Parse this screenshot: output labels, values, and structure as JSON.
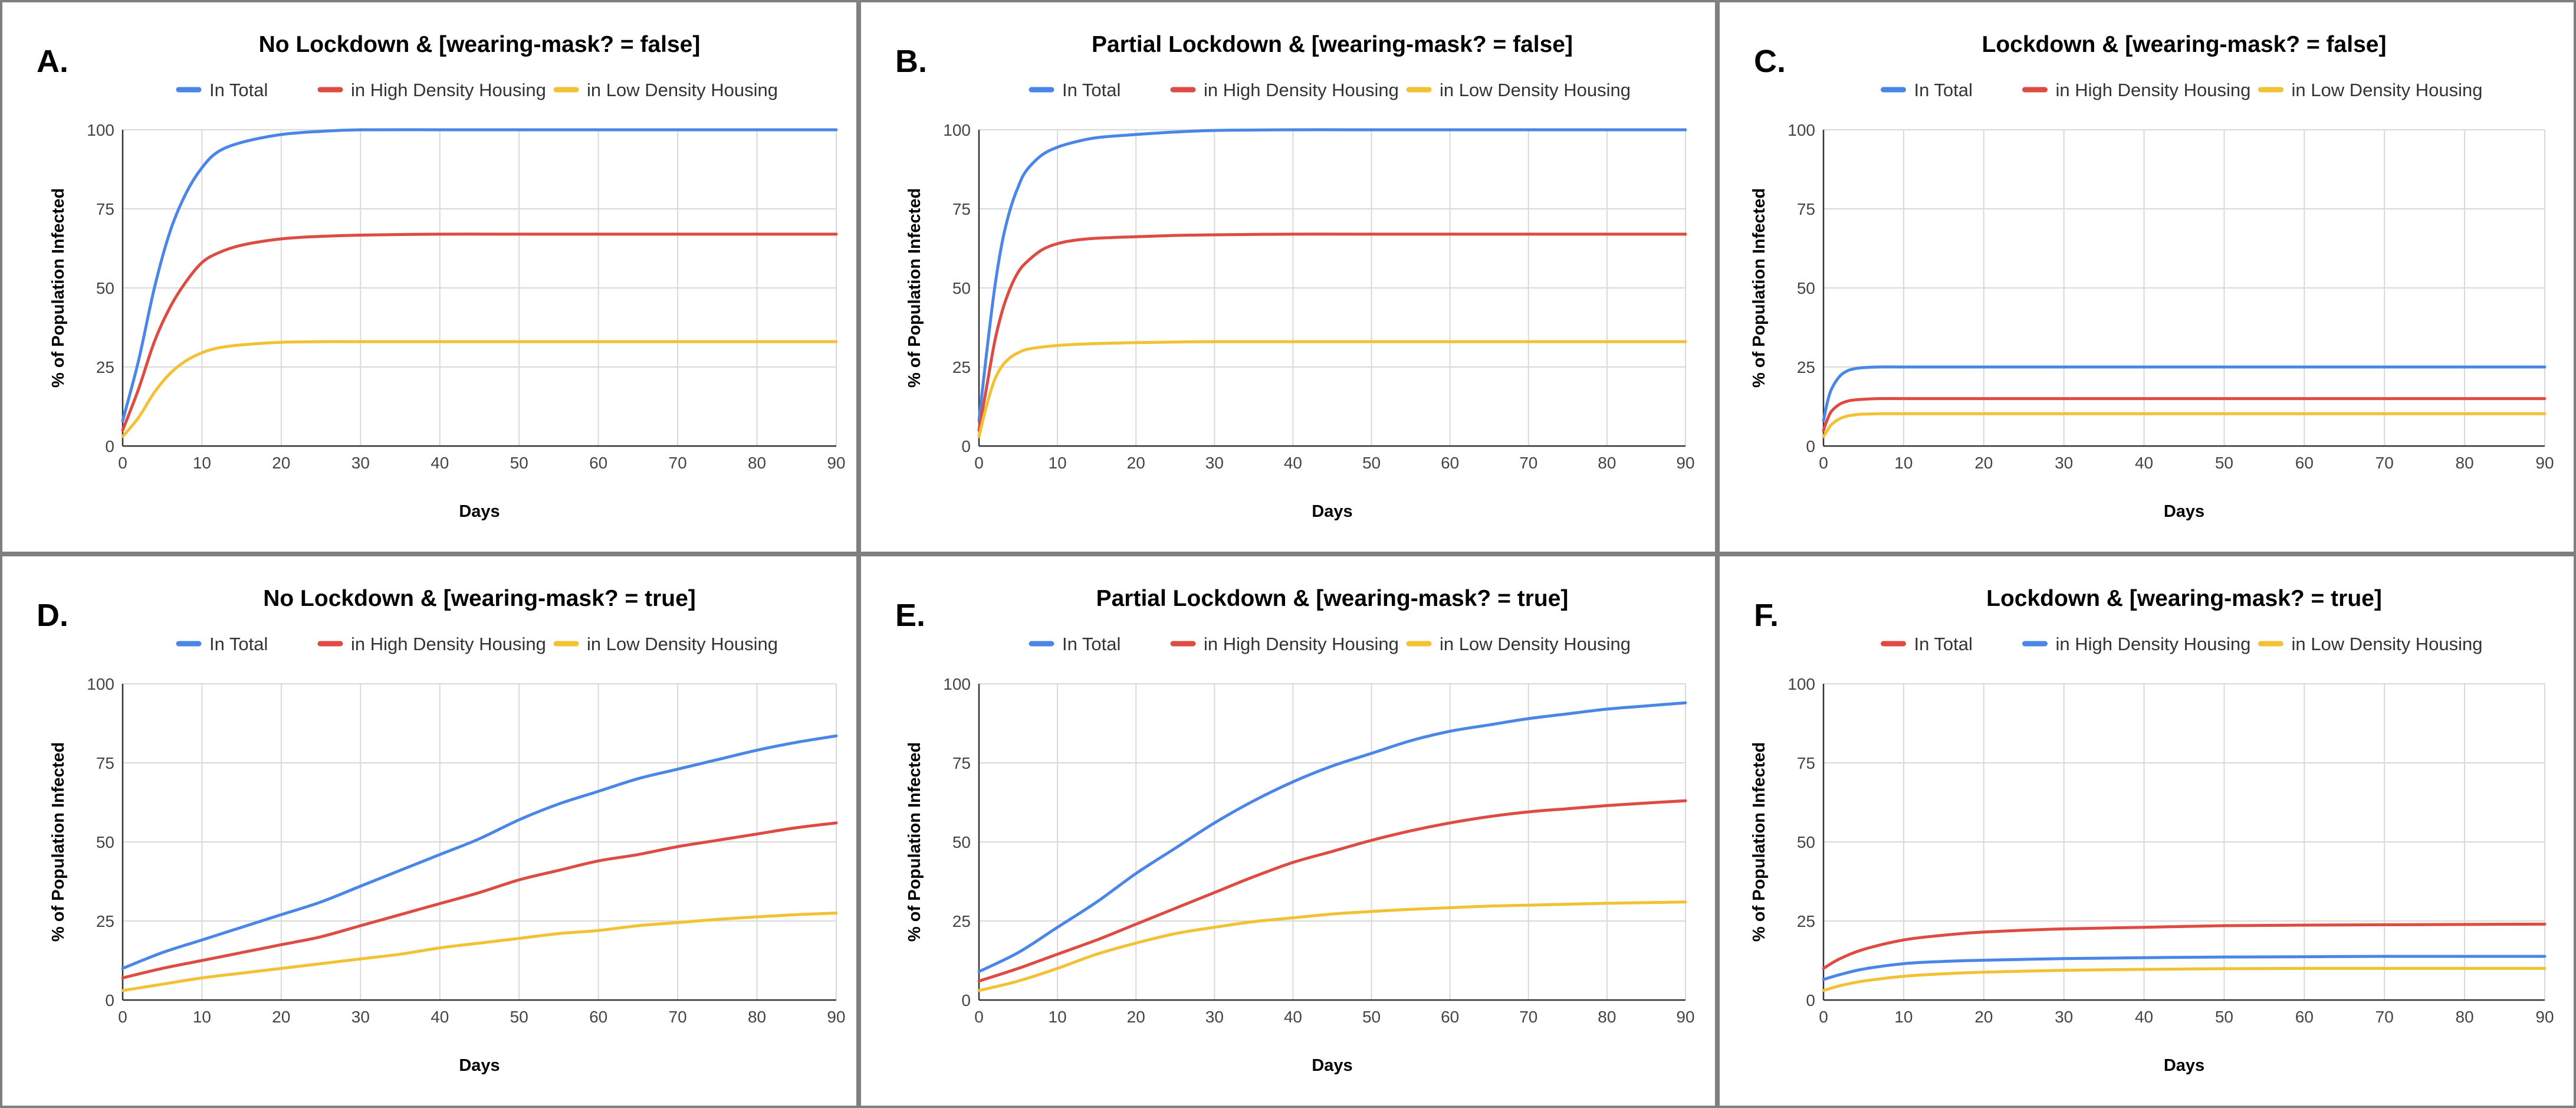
{
  "colors": {
    "blue": "#4a86e8",
    "red": "#dd4b42",
    "yellow": "#f3c134"
  },
  "chart_data": [
    {
      "panel": "A.",
      "type": "line",
      "title": "No Lockdown & [wearing-mask? = false]",
      "xlabel": "Days",
      "ylabel": "% of Population Infected",
      "xlim": [
        0,
        90
      ],
      "ylim": [
        0,
        100
      ],
      "xticks": [
        0,
        10,
        20,
        30,
        40,
        50,
        60,
        70,
        80,
        90
      ],
      "yticks": [
        0,
        25,
        50,
        75,
        100
      ],
      "legend": "top",
      "series": [
        {
          "name": "In Total",
          "color": "blue",
          "x": [
            0,
            2,
            4,
            6,
            8,
            10,
            12,
            15,
            20,
            25,
            30,
            40,
            50,
            60,
            70,
            80,
            90
          ],
          "y": [
            8,
            27,
            50,
            68,
            80,
            88,
            93,
            96,
            98.5,
            99.5,
            100,
            100,
            100,
            100,
            100,
            100,
            100
          ]
        },
        {
          "name": "in High Density Housing",
          "color": "red",
          "x": [
            0,
            2,
            4,
            6,
            8,
            10,
            12,
            15,
            20,
            25,
            30,
            40,
            50,
            60,
            70,
            80,
            90
          ],
          "y": [
            5,
            18,
            33,
            44,
            52,
            58,
            61,
            63.5,
            65.5,
            66.3,
            66.7,
            67,
            67,
            67,
            67,
            67,
            67
          ]
        },
        {
          "name": "in Low Density Housing",
          "color": "yellow",
          "x": [
            0,
            2,
            4,
            6,
            8,
            10,
            12,
            15,
            20,
            25,
            30,
            40,
            50,
            60,
            70,
            80,
            90
          ],
          "y": [
            3,
            9,
            17,
            23,
            27,
            29.5,
            31,
            32,
            32.8,
            33,
            33,
            33,
            33,
            33,
            33,
            33,
            33
          ]
        }
      ]
    },
    {
      "panel": "B.",
      "type": "line",
      "title": "Partial Lockdown & [wearing-mask? = false]",
      "xlabel": "Days",
      "ylabel": "% of Population Infected",
      "xlim": [
        0,
        90
      ],
      "ylim": [
        0,
        100
      ],
      "xticks": [
        0,
        10,
        20,
        30,
        40,
        50,
        60,
        70,
        80,
        90
      ],
      "yticks": [
        0,
        25,
        50,
        75,
        100
      ],
      "legend": "top",
      "series": [
        {
          "name": "In Total",
          "color": "blue",
          "x": [
            0,
            1,
            2,
            3,
            4,
            5,
            6,
            8,
            10,
            12,
            15,
            20,
            25,
            30,
            40,
            50,
            60,
            70,
            80,
            90
          ],
          "y": [
            8,
            30,
            50,
            65,
            75,
            82,
            87,
            92,
            94.5,
            96,
            97.5,
            98.5,
            99.3,
            99.8,
            100,
            100,
            100,
            100,
            100,
            100
          ]
        },
        {
          "name": "in High Density Housing",
          "color": "red",
          "x": [
            0,
            1,
            2,
            3,
            4,
            5,
            6,
            8,
            10,
            12,
            15,
            20,
            25,
            30,
            40,
            50,
            60,
            70,
            80,
            90
          ],
          "y": [
            5,
            19,
            33,
            43,
            50,
            55,
            58,
            62,
            64,
            65,
            65.7,
            66.2,
            66.6,
            66.8,
            67,
            67,
            67,
            67,
            67,
            67
          ]
        },
        {
          "name": "in Low Density Housing",
          "color": "yellow",
          "x": [
            0,
            1,
            2,
            3,
            4,
            5,
            6,
            8,
            10,
            12,
            15,
            20,
            25,
            30,
            40,
            50,
            60,
            70,
            80,
            90
          ],
          "y": [
            3,
            13,
            21,
            25.5,
            28,
            29.5,
            30.5,
            31.3,
            31.8,
            32.1,
            32.4,
            32.7,
            32.9,
            33,
            33,
            33,
            33,
            33,
            33,
            33
          ]
        }
      ]
    },
    {
      "panel": "C.",
      "type": "line",
      "title": "Lockdown & [wearing-mask? = false]",
      "xlabel": "Days",
      "ylabel": "% of Population Infected",
      "xlim": [
        0,
        90
      ],
      "ylim": [
        0,
        100
      ],
      "xticks": [
        0,
        10,
        20,
        30,
        40,
        50,
        60,
        70,
        80,
        90
      ],
      "yticks": [
        0,
        25,
        50,
        75,
        100
      ],
      "legend": "top",
      "series": [
        {
          "name": "In Total",
          "color": "blue",
          "x": [
            0,
            0.5,
            1,
            2,
            3,
            4,
            5,
            7,
            10,
            20,
            30,
            40,
            50,
            60,
            70,
            80,
            90
          ],
          "y": [
            8,
            14,
            18,
            22,
            23.8,
            24.5,
            24.8,
            25,
            25,
            25,
            25,
            25,
            25,
            25,
            25,
            25,
            25
          ]
        },
        {
          "name": "in High Density Housing",
          "color": "red",
          "x": [
            0,
            0.5,
            1,
            2,
            3,
            4,
            5,
            7,
            10,
            20,
            30,
            40,
            50,
            60,
            70,
            80,
            90
          ],
          "y": [
            5,
            8.5,
            11,
            13.2,
            14.2,
            14.6,
            14.8,
            15,
            15,
            15,
            15,
            15,
            15,
            15,
            15,
            15,
            15
          ]
        },
        {
          "name": "in Low Density Housing",
          "color": "yellow",
          "x": [
            0,
            0.5,
            1,
            2,
            3,
            4,
            5,
            7,
            10,
            20,
            30,
            40,
            50,
            60,
            70,
            80,
            90
          ],
          "y": [
            3,
            5,
            6.8,
            8.6,
            9.5,
            9.9,
            10.1,
            10.2,
            10.2,
            10.2,
            10.2,
            10.2,
            10.2,
            10.2,
            10.2,
            10.2,
            10.2
          ]
        }
      ]
    },
    {
      "panel": "D.",
      "type": "line",
      "title": "No Lockdown & [wearing-mask? = true]",
      "xlabel": "Days",
      "ylabel": "% of Population Infected",
      "xlim": [
        0,
        90
      ],
      "ylim": [
        0,
        100
      ],
      "xticks": [
        0,
        10,
        20,
        30,
        40,
        50,
        60,
        70,
        80,
        90
      ],
      "yticks": [
        0,
        25,
        50,
        75,
        100
      ],
      "legend": "top",
      "series": [
        {
          "name": "In Total",
          "color": "blue",
          "x": [
            0,
            5,
            10,
            15,
            20,
            25,
            30,
            35,
            40,
            45,
            50,
            55,
            60,
            65,
            70,
            75,
            80,
            85,
            90
          ],
          "y": [
            10,
            15,
            19,
            23,
            27,
            31,
            36,
            41,
            46,
            51,
            57,
            62,
            66,
            70,
            73,
            76,
            79,
            81.5,
            83.5
          ]
        },
        {
          "name": "in High Density Housing",
          "color": "red",
          "x": [
            0,
            5,
            10,
            15,
            20,
            25,
            30,
            35,
            40,
            45,
            50,
            55,
            60,
            65,
            70,
            75,
            80,
            85,
            90
          ],
          "y": [
            7,
            10,
            12.5,
            15,
            17.5,
            20,
            23.5,
            27,
            30.5,
            34,
            38,
            41,
            44,
            46,
            48.5,
            50.5,
            52.5,
            54.5,
            56
          ]
        },
        {
          "name": "in Low Density Housing",
          "color": "yellow",
          "x": [
            0,
            5,
            10,
            15,
            20,
            25,
            30,
            35,
            40,
            45,
            50,
            55,
            60,
            65,
            70,
            75,
            80,
            85,
            90
          ],
          "y": [
            3,
            5,
            7,
            8.5,
            10,
            11.5,
            13,
            14.5,
            16.5,
            18,
            19.5,
            21,
            22,
            23.5,
            24.5,
            25.5,
            26.3,
            27,
            27.5
          ]
        }
      ]
    },
    {
      "panel": "E.",
      "type": "line",
      "title": "Partial Lockdown & [wearing-mask? = true]",
      "xlabel": "Days",
      "ylabel": "% of Population Infected",
      "xlim": [
        0,
        90
      ],
      "ylim": [
        0,
        100
      ],
      "xticks": [
        0,
        10,
        20,
        30,
        40,
        50,
        60,
        70,
        80,
        90
      ],
      "yticks": [
        0,
        25,
        50,
        75,
        100
      ],
      "legend": "top",
      "series": [
        {
          "name": "In Total",
          "color": "blue",
          "x": [
            0,
            5,
            10,
            15,
            20,
            25,
            30,
            35,
            40,
            45,
            50,
            55,
            60,
            65,
            70,
            75,
            80,
            85,
            90
          ],
          "y": [
            9,
            15,
            23,
            31,
            40,
            48,
            56,
            63,
            69,
            74,
            78,
            82,
            85,
            87,
            89,
            90.5,
            92,
            93,
            94
          ]
        },
        {
          "name": "in High Density Housing",
          "color": "red",
          "x": [
            0,
            5,
            10,
            15,
            20,
            25,
            30,
            35,
            40,
            45,
            50,
            55,
            60,
            65,
            70,
            75,
            80,
            85,
            90
          ],
          "y": [
            6,
            10,
            14.5,
            19,
            24,
            29,
            34,
            39,
            43.5,
            47,
            50.5,
            53.5,
            56,
            58,
            59.5,
            60.5,
            61.5,
            62.3,
            63
          ]
        },
        {
          "name": "in Low Density Housing",
          "color": "yellow",
          "x": [
            0,
            5,
            10,
            15,
            20,
            25,
            30,
            35,
            40,
            45,
            50,
            55,
            60,
            65,
            70,
            75,
            80,
            85,
            90
          ],
          "y": [
            3,
            6,
            10,
            14.5,
            18,
            21,
            23,
            24.8,
            26,
            27.2,
            28,
            28.7,
            29.2,
            29.7,
            30,
            30.3,
            30.6,
            30.8,
            31
          ]
        }
      ]
    },
    {
      "panel": "F.",
      "type": "line",
      "title": "Lockdown & [wearing-mask? = true]",
      "xlabel": "Days",
      "ylabel": "% of Population Infected",
      "xlim": [
        0,
        90
      ],
      "ylim": [
        0,
        100
      ],
      "xticks": [
        0,
        10,
        20,
        30,
        40,
        50,
        60,
        70,
        80,
        90
      ],
      "yticks": [
        0,
        25,
        50,
        75,
        100
      ],
      "legend": "top",
      "series": [
        {
          "name": "In Total",
          "color": "red",
          "x": [
            0,
            2,
            5,
            10,
            15,
            20,
            30,
            40,
            50,
            60,
            70,
            80,
            90
          ],
          "y": [
            10,
            13,
            16,
            19,
            20.5,
            21.5,
            22.5,
            23,
            23.5,
            23.7,
            23.8,
            23.9,
            24
          ]
        },
        {
          "name": "in High Density Housing",
          "color": "blue",
          "x": [
            0,
            2,
            5,
            10,
            15,
            20,
            30,
            40,
            50,
            60,
            70,
            80,
            90
          ],
          "y": [
            6.5,
            8,
            9.8,
            11.5,
            12.2,
            12.6,
            13.1,
            13.4,
            13.6,
            13.7,
            13.8,
            13.8,
            13.8
          ]
        },
        {
          "name": "in Low Density Housing",
          "color": "yellow",
          "x": [
            0,
            2,
            5,
            10,
            15,
            20,
            30,
            40,
            50,
            60,
            70,
            80,
            90
          ],
          "y": [
            3,
            4.5,
            6,
            7.5,
            8.3,
            8.8,
            9.4,
            9.7,
            9.9,
            10,
            10,
            10,
            10
          ]
        }
      ]
    }
  ]
}
